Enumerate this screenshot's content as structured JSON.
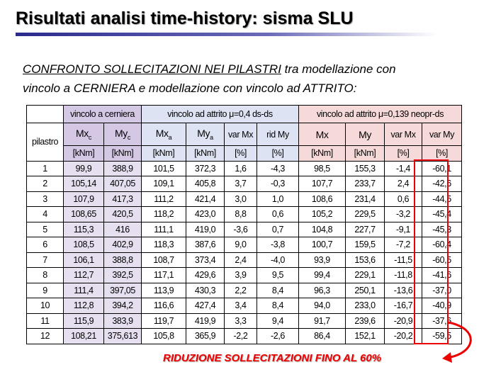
{
  "header": {
    "title": "Risultati analisi time-history: sisma SLU"
  },
  "intro": {
    "lead": "CONFRONTO SOLLECITAZIONI NEI PILASTRI",
    "rest": " tra modellazione con",
    "line2": "vincolo a CERNIERA e modellazione con vincolo ad ATTRITO:"
  },
  "table": {
    "groups": [
      "vincolo a cerniera",
      "vincolo ad attrito μ=0,4 ds-ds",
      "vincolo ad attrito μ=0,139 neopr-ds"
    ],
    "first_column": "pilastro",
    "columns": [
      {
        "main": "Mx",
        "sub": "c"
      },
      {
        "main": "My",
        "sub": "c"
      },
      {
        "main": "Mx",
        "sub": "a"
      },
      {
        "main": "My",
        "sub": "a"
      },
      {
        "main": "var Mx"
      },
      {
        "main": "rid My"
      },
      {
        "main": "Mx"
      },
      {
        "main": "My"
      },
      {
        "main": "var Mx"
      },
      {
        "main": "var My"
      }
    ],
    "units": [
      "[kNm]",
      "[kNm]",
      "[kNm]",
      "[kNm]",
      "[%]",
      "[%]",
      "[kNm]",
      "[kNm]",
      "[%]",
      "[%]"
    ],
    "rows": [
      [
        "1",
        "99,9",
        "388,9",
        "101,5",
        "372,3",
        "1,6",
        "-4,3",
        "98,5",
        "155,3",
        "-1,4",
        "-60,1"
      ],
      [
        "2",
        "105,14",
        "407,05",
        "109,1",
        "405,8",
        "3,7",
        "-0,3",
        "107,7",
        "233,7",
        "2,4",
        "-42,6"
      ],
      [
        "3",
        "107,9",
        "417,3",
        "111,2",
        "421,4",
        "3,0",
        "1,0",
        "108,6",
        "231,4",
        "0,6",
        "-44,5"
      ],
      [
        "4",
        "108,65",
        "420,5",
        "118,2",
        "423,0",
        "8,8",
        "0,6",
        "105,2",
        "229,5",
        "-3,2",
        "-45,4"
      ],
      [
        "5",
        "115,3",
        "416",
        "111,1",
        "419,0",
        "-3,6",
        "0,7",
        "104,8",
        "227,7",
        "-9,1",
        "-45,3"
      ],
      [
        "6",
        "108,5",
        "402,9",
        "118,3",
        "387,6",
        "9,0",
        "-3,8",
        "100,7",
        "159,5",
        "-7,2",
        "-60,4"
      ],
      [
        "7",
        "106,1",
        "388,8",
        "108,7",
        "373,4",
        "2,4",
        "-4,0",
        "93,9",
        "153,6",
        "-11,5",
        "-60,5"
      ],
      [
        "8",
        "112,7",
        "392,5",
        "117,1",
        "429,6",
        "3,9",
        "9,5",
        "99,4",
        "229,1",
        "-11,8",
        "-41,6"
      ],
      [
        "9",
        "111,4",
        "397,05",
        "113,9",
        "430,3",
        "2,2",
        "8,4",
        "96,3",
        "250,1",
        "-13,6",
        "-37,0"
      ],
      [
        "10",
        "112,8",
        "394,2",
        "116,6",
        "427,4",
        "3,4",
        "8,4",
        "94,0",
        "233,0",
        "-16,7",
        "-40,9"
      ],
      [
        "11",
        "115,9",
        "383,9",
        "119,7",
        "419,9",
        "3,3",
        "9,4",
        "91,7",
        "239,6",
        "-20,9",
        "-37,6"
      ],
      [
        "12",
        "108,21",
        "375,613",
        "105,8",
        "365,9",
        "-2,2",
        "-2,6",
        "86,4",
        "152,1",
        "-20,2",
        "-59,5"
      ]
    ]
  },
  "footer": {
    "note": "RIDUZIONE SOLLECITAZIONI FINO AL 60%"
  }
}
